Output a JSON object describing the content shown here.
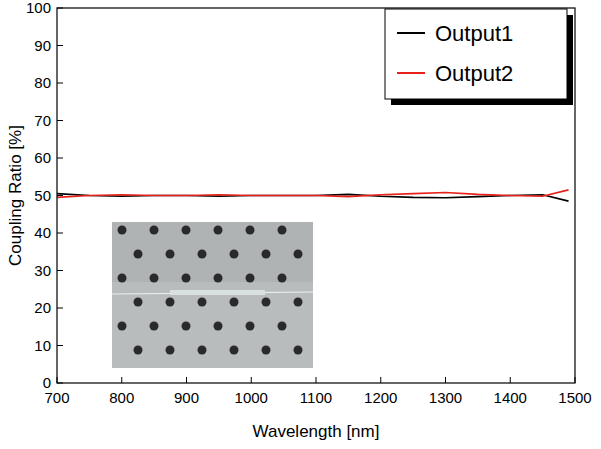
{
  "chart_data": {
    "type": "line",
    "x_label": "Wavelength [nm]",
    "y_label": "Coupling Ratio [%]",
    "x": [
      700,
      750,
      800,
      850,
      900,
      950,
      1000,
      1050,
      1100,
      1150,
      1200,
      1250,
      1300,
      1350,
      1400,
      1450,
      1490
    ],
    "series": [
      {
        "name": "Output1",
        "color": "#000000",
        "values": [
          50.5,
          50,
          49.8,
          50,
          50,
          49.8,
          50,
          50,
          50,
          50.3,
          49.8,
          49.5,
          49.4,
          49.7,
          50,
          50.2,
          48.5
        ]
      },
      {
        "name": "Output2",
        "color": "#e8201a",
        "values": [
          49.5,
          50,
          50.2,
          50,
          50,
          50.2,
          50,
          50,
          50,
          49.7,
          50.2,
          50.5,
          50.8,
          50.3,
          50,
          49.8,
          51.5
        ]
      }
    ],
    "xlim": [
      700,
      1500
    ],
    "xticks": [
      700,
      800,
      900,
      1000,
      1100,
      1200,
      1300,
      1400,
      1500
    ],
    "ylim": [
      0,
      100
    ],
    "yticks": [
      0,
      10,
      20,
      30,
      40,
      50,
      60,
      70,
      80,
      90,
      100
    ],
    "grid": false,
    "legend": "top-right"
  }
}
